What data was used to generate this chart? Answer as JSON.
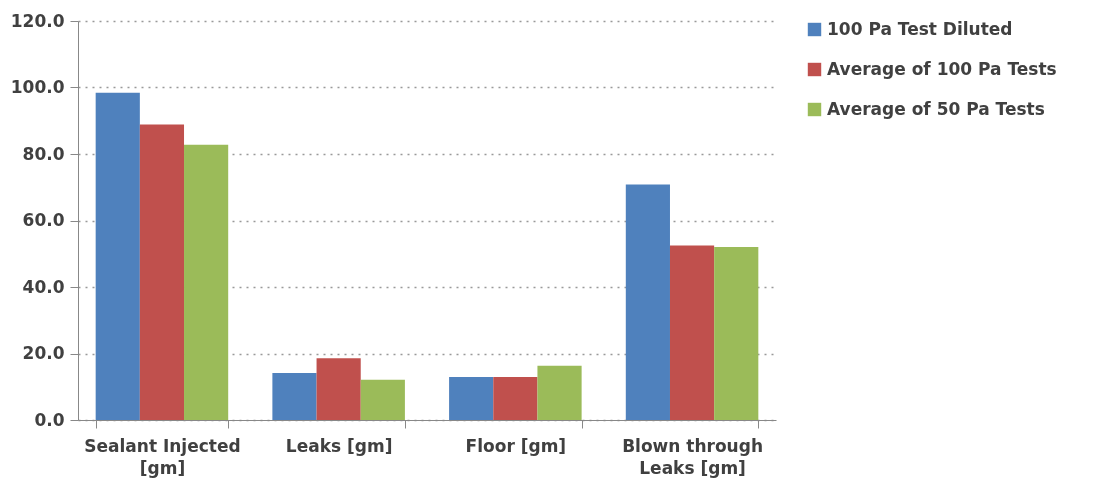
{
  "chart_data": {
    "type": "bar",
    "categories": [
      "Sealant Injected [gm]",
      "Leaks [gm]",
      "Floor [gm]",
      "Blown through Leaks [gm]"
    ],
    "series": [
      {
        "name": "100 Pa Test Diluted",
        "color": "#4f81bd",
        "values": [
          98.4,
          14.1,
          12.9,
          70.8
        ]
      },
      {
        "name": "Average of 100 Pa Tests",
        "color": "#c0504d",
        "values": [
          88.9,
          18.6,
          12.9,
          52.5
        ]
      },
      {
        "name": "Average of 50 Pa Tests",
        "color": "#9bbb59",
        "values": [
          82.8,
          12.1,
          16.3,
          52.0
        ]
      }
    ],
    "ylim": [
      0,
      120
    ],
    "yticks": [
      {
        "value": 0,
        "label": "0.0"
      },
      {
        "value": 20,
        "label": "20.0"
      },
      {
        "value": 40,
        "label": "40.0"
      },
      {
        "value": 60,
        "label": "60.0"
      },
      {
        "value": 80,
        "label": "80.0"
      },
      {
        "value": 100,
        "label": "100.0"
      },
      {
        "value": 120,
        "label": "120.0"
      }
    ],
    "grid": "y",
    "legend": "right"
  }
}
